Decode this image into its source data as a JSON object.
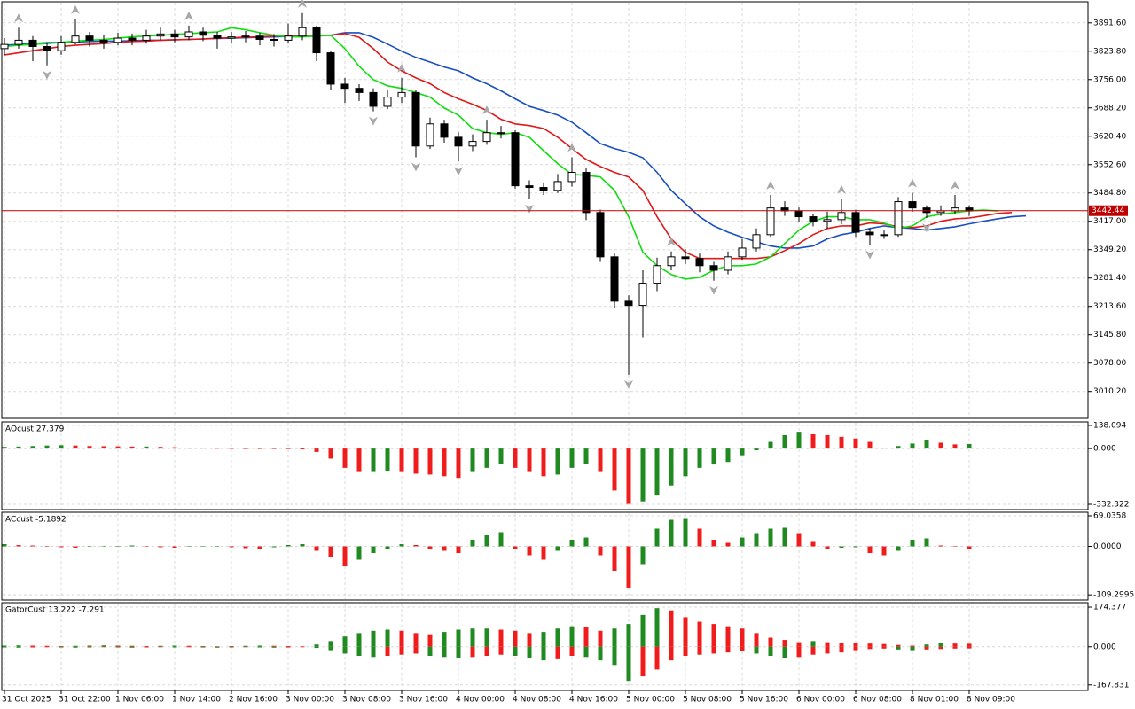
{
  "chart_data": [
    {
      "type": "candlestick",
      "categories": [
        "31 Oct 2025",
        null,
        null,
        null,
        "31 Oct 22:00",
        null,
        null,
        null,
        "1 Nov 06:00",
        null,
        null,
        null,
        "1 Nov 14:00",
        null,
        null,
        null,
        "2 Nov 16:00",
        null,
        null,
        null,
        "3 Nov 00:00",
        null,
        null,
        null,
        "3 Nov 08:00",
        null,
        null,
        null,
        "3 Nov 16:00",
        null,
        null,
        null,
        "4 Nov 00:00",
        null,
        null,
        null,
        "4 Nov 08:00",
        null,
        null,
        null,
        "4 Nov 16:00",
        null,
        null,
        null,
        "5 Nov 00:00",
        null,
        null,
        null,
        "5 Nov 08:00",
        null,
        null,
        null,
        "5 Nov 16:00",
        null,
        null,
        null,
        "6 Nov 00:00",
        null,
        null,
        null,
        "6 Nov 08:00",
        null,
        null,
        null,
        "8 Nov 01:00",
        null,
        null,
        null,
        "8 Nov 09:00",
        null,
        null,
        null,
        null
      ],
      "open": [
        3830,
        3840,
        3850,
        3835,
        3825,
        3845,
        3860,
        3850,
        3845,
        3855,
        3850,
        3860,
        3865,
        3858,
        3870,
        3862,
        3855,
        3858,
        3860,
        3852,
        3850,
        3860,
        3880,
        3820,
        3745,
        3735,
        3725,
        3692,
        3714,
        3725,
        3597,
        3650,
        3618,
        3597,
        3608,
        3629,
        3629,
        3502,
        3498,
        3491,
        3512,
        3534,
        3438,
        3332,
        3226,
        3216,
        3269,
        3311,
        3332,
        3328,
        3311,
        3300,
        3332,
        3353,
        3385,
        3449,
        3442,
        3428,
        3417,
        3421,
        3438,
        3391,
        3385,
        3385,
        3464,
        3449,
        3438,
        3442,
        3449,
        null,
        null,
        null,
        null
      ],
      "high": [
        3855,
        3880,
        3860,
        3845,
        3860,
        3900,
        3870,
        3862,
        3868,
        3866,
        3875,
        3880,
        3875,
        3885,
        3880,
        3870,
        3870,
        3872,
        3868,
        3865,
        3890,
        3915,
        3885,
        3825,
        3760,
        3745,
        3735,
        3730,
        3760,
        3730,
        3665,
        3660,
        3630,
        3625,
        3660,
        3645,
        3635,
        3515,
        3510,
        3530,
        3570,
        3545,
        3445,
        3340,
        3240,
        3300,
        3330,
        3345,
        3350,
        3340,
        3320,
        3345,
        3375,
        3400,
        3480,
        3465,
        3450,
        3435,
        3440,
        3470,
        3445,
        3400,
        3395,
        3475,
        3485,
        3455,
        3455,
        3480,
        3455,
        null,
        null,
        null,
        null
      ],
      "low": [
        3815,
        3830,
        3800,
        3790,
        3815,
        3840,
        3835,
        3830,
        3838,
        3838,
        3842,
        3850,
        3845,
        3850,
        3848,
        3830,
        3842,
        3845,
        3838,
        3835,
        3842,
        3850,
        3800,
        3730,
        3700,
        3705,
        3680,
        3685,
        3700,
        3570,
        3590,
        3605,
        3560,
        3585,
        3600,
        3615,
        3495,
        3470,
        3480,
        3485,
        3500,
        3420,
        3320,
        3210,
        3050,
        3140,
        3250,
        3300,
        3315,
        3295,
        3275,
        3290,
        3325,
        3345,
        3380,
        3430,
        3415,
        3405,
        3400,
        3410,
        3380,
        3360,
        3375,
        3380,
        3440,
        3425,
        3430,
        3435,
        3430,
        null,
        null,
        null,
        null
      ],
      "close": [
        3840,
        3850,
        3835,
        3825,
        3845,
        3860,
        3850,
        3845,
        3855,
        3850,
        3860,
        3865,
        3858,
        3870,
        3862,
        3855,
        3858,
        3860,
        3852,
        3850,
        3860,
        3880,
        3820,
        3745,
        3735,
        3725,
        3692,
        3714,
        3725,
        3597,
        3650,
        3618,
        3597,
        3608,
        3629,
        3629,
        3502,
        3498,
        3491,
        3512,
        3534,
        3438,
        3332,
        3226,
        3216,
        3269,
        3311,
        3332,
        3328,
        3311,
        3300,
        3332,
        3353,
        3385,
        3449,
        3442,
        3428,
        3417,
        3421,
        3438,
        3391,
        3385,
        3385,
        3464,
        3449,
        3438,
        3442,
        3449,
        3442.44,
        null,
        null,
        null,
        null
      ],
      "up_color": "#ffffff",
      "down_color": "#000000",
      "series": [
        {
          "color": "#1a4fc0",
          "values": [
            3838,
            3840,
            3842,
            3844,
            3845,
            3846,
            3847,
            3848,
            3848,
            3849,
            3850,
            3850,
            3851,
            3852,
            3853,
            3854,
            3855,
            3856,
            3857,
            3858,
            3859,
            3860,
            3861,
            3862,
            3868,
            3868,
            3857,
            3841,
            3824,
            3809,
            3798,
            3786,
            3777,
            3760,
            3746,
            3729,
            3710,
            3692,
            3682,
            3671,
            3654,
            3629,
            3603,
            3591,
            3582,
            3569,
            3534,
            3491,
            3459,
            3428,
            3406,
            3391,
            3379,
            3368,
            3358,
            3353,
            3353,
            3358,
            3375,
            3385,
            3391,
            3400,
            3406,
            3402,
            3400,
            3396,
            3400,
            3404,
            3411,
            3417,
            3423,
            3428,
            3430
          ]
        },
        {
          "color": "#e01818",
          "values": [
            3815,
            3820,
            3825,
            3830,
            3835,
            3838,
            3840,
            3842,
            3845,
            3847,
            3848,
            3850,
            3851,
            3852,
            3853,
            3855,
            3856,
            3857,
            3858,
            3860,
            3862,
            3862,
            3862,
            3862,
            3866,
            3857,
            3830,
            3798,
            3777,
            3760,
            3746,
            3725,
            3710,
            3697,
            3682,
            3661,
            3650,
            3646,
            3639,
            3618,
            3591,
            3565,
            3548,
            3534,
            3523,
            3491,
            3428,
            3375,
            3343,
            3328,
            3328,
            3328,
            3328,
            3328,
            3332,
            3347,
            3364,
            3385,
            3400,
            3406,
            3406,
            3413,
            3411,
            3404,
            3402,
            3406,
            3417,
            3423,
            3425,
            3430,
            3436,
            3438,
            null
          ]
        },
        {
          "color": "#10dd10",
          "values": [
            3835,
            3838,
            3840,
            3842,
            3845,
            3848,
            3850,
            3852,
            3855,
            3858,
            3860,
            3862,
            3864,
            3866,
            3868,
            3870,
            3880,
            3875,
            3868,
            3862,
            3858,
            3858,
            3860,
            3862,
            3830,
            3788,
            3756,
            3741,
            3735,
            3725,
            3714,
            3688,
            3671,
            3639,
            3629,
            3625,
            3629,
            3618,
            3586,
            3555,
            3529,
            3527,
            3523,
            3491,
            3428,
            3343,
            3311,
            3290,
            3279,
            3283,
            3300,
            3311,
            3311,
            3315,
            3332,
            3364,
            3396,
            3417,
            3428,
            3428,
            3421,
            3421,
            3413,
            3400,
            3406,
            3428,
            3434,
            3438,
            3442,
            3444,
            3442,
            null,
            null
          ]
        }
      ],
      "fractals_up": [
        1,
        5,
        13,
        21,
        28,
        34,
        40,
        47,
        54,
        59,
        64,
        67
      ],
      "fractals_down": [
        3,
        26,
        29,
        32,
        37,
        44,
        50,
        61,
        65
      ],
      "fractal_color": "#a8a8a8",
      "price_line": 3442.44,
      "price_line_color": "#c00000",
      "ylim": [
        2946,
        3942
      ],
      "yticks": [
        {
          "value": 3891.6,
          "label": "3891.60"
        },
        {
          "value": 3823.8,
          "label": "3823.80"
        },
        {
          "value": 3756,
          "label": "3756.00"
        },
        {
          "value": 3688.2,
          "label": "3688.20"
        },
        {
          "value": 3620.4,
          "label": "3620.40"
        },
        {
          "value": 3552.6,
          "label": "3552.60"
        },
        {
          "value": 3484.8,
          "label": "3484.80"
        },
        {
          "value": 3417,
          "label": "3417.00"
        },
        {
          "value": 3349.2,
          "label": "3349.20"
        },
        {
          "value": 3281.4,
          "label": "3281.40"
        },
        {
          "value": 3213.6,
          "label": "3213.60"
        },
        {
          "value": 3145.8,
          "label": "3145.80"
        },
        {
          "value": 3078,
          "label": "3078.00"
        },
        {
          "value": 3010.2,
          "label": "3010.20"
        }
      ],
      "grid": true
    },
    {
      "type": "histogram",
      "title": "AOcust 27.379",
      "values": [
        10,
        12,
        15,
        18,
        20,
        18,
        15,
        14,
        13,
        12,
        12,
        10,
        8,
        5,
        3,
        2,
        1,
        0,
        -1,
        -2,
        -3,
        -5,
        -20,
        -60,
        -115,
        -140,
        -140,
        -135,
        -140,
        -150,
        -155,
        -165,
        -175,
        -140,
        -115,
        -90,
        -115,
        -140,
        -165,
        -155,
        -115,
        -90,
        -140,
        -250,
        -330,
        -315,
        -280,
        -220,
        -165,
        -115,
        -95,
        -80,
        -40,
        -10,
        40,
        80,
        95,
        85,
        80,
        70,
        60,
        40,
        5,
        15,
        30,
        50,
        35,
        25,
        27.379
      ],
      "up_color": "#1f8a1f",
      "down_color": "#f01c1c",
      "ylim": [
        -364,
        159
      ],
      "yticks": [
        138.094,
        {
          "value": 0,
          "label": "0.000"
        },
        -332.322
      ],
      "grid": true
    },
    {
      "type": "histogram",
      "title": "ACcust -5.1892",
      "values": [
        5,
        3,
        2,
        0,
        -2,
        -3,
        -1,
        0,
        1,
        2,
        0,
        -2,
        -3,
        -1,
        0,
        1,
        -2,
        -4,
        -6,
        -2,
        3,
        5,
        -10,
        -25,
        -45,
        -30,
        -15,
        -5,
        5,
        3,
        -5,
        -10,
        -15,
        15,
        25,
        32,
        -5,
        -20,
        -30,
        -10,
        15,
        20,
        -20,
        -55,
        -95,
        -40,
        40,
        60,
        62,
        40,
        15,
        8,
        20,
        30,
        40,
        42,
        30,
        10,
        -5,
        -3,
        -2,
        -15,
        -20,
        -10,
        15,
        18,
        2,
        0,
        -5.1892
      ],
      "up_color": "#1f8a1f",
      "down_color": "#f01c1c",
      "ylim": [
        -121,
        77
      ],
      "yticks": [
        69.0358,
        {
          "value": 0,
          "label": "0.0000"
        },
        -109.2995
      ],
      "grid": true
    },
    {
      "type": "gator",
      "title": "GatorCust 13.222 -7.291",
      "upper": [
        5,
        6,
        5,
        4,
        3,
        4,
        5,
        6,
        5,
        4,
        3,
        4,
        5,
        4,
        3,
        2,
        3,
        4,
        5,
        4,
        3,
        2,
        10,
        25,
        45,
        60,
        70,
        75,
        70,
        60,
        55,
        65,
        75,
        80,
        80,
        75,
        70,
        60,
        65,
        80,
        90,
        85,
        70,
        80,
        100,
        140,
        170,
        160,
        130,
        110,
        100,
        90,
        80,
        60,
        40,
        30,
        20,
        25,
        20,
        18,
        16,
        14,
        12,
        8,
        5,
        10,
        15,
        14,
        13.222
      ],
      "lower": [
        -3,
        -4,
        -3,
        -2,
        -3,
        -4,
        -3,
        -2,
        -3,
        -4,
        -3,
        -2,
        -3,
        -2,
        -3,
        -4,
        -3,
        -2,
        -3,
        -4,
        -3,
        -2,
        -5,
        -15,
        -30,
        -40,
        -45,
        -40,
        -35,
        -30,
        -40,
        -45,
        -50,
        -45,
        -40,
        -35,
        -40,
        -50,
        -60,
        -55,
        -40,
        -45,
        -60,
        -80,
        -150,
        -130,
        -100,
        -60,
        -40,
        -35,
        -30,
        -25,
        -20,
        -30,
        -40,
        -50,
        -45,
        -35,
        -30,
        -25,
        -15,
        -10,
        -8,
        -12,
        -15,
        -12,
        -10,
        -8,
        -7.291
      ],
      "up_color": "#1f8a1f",
      "down_color": "#f01c1c",
      "ylim": [
        -192,
        194
      ],
      "yticks": [
        174.377,
        {
          "value": 0,
          "label": "0.000"
        },
        -167.831
      ],
      "grid": true
    }
  ]
}
